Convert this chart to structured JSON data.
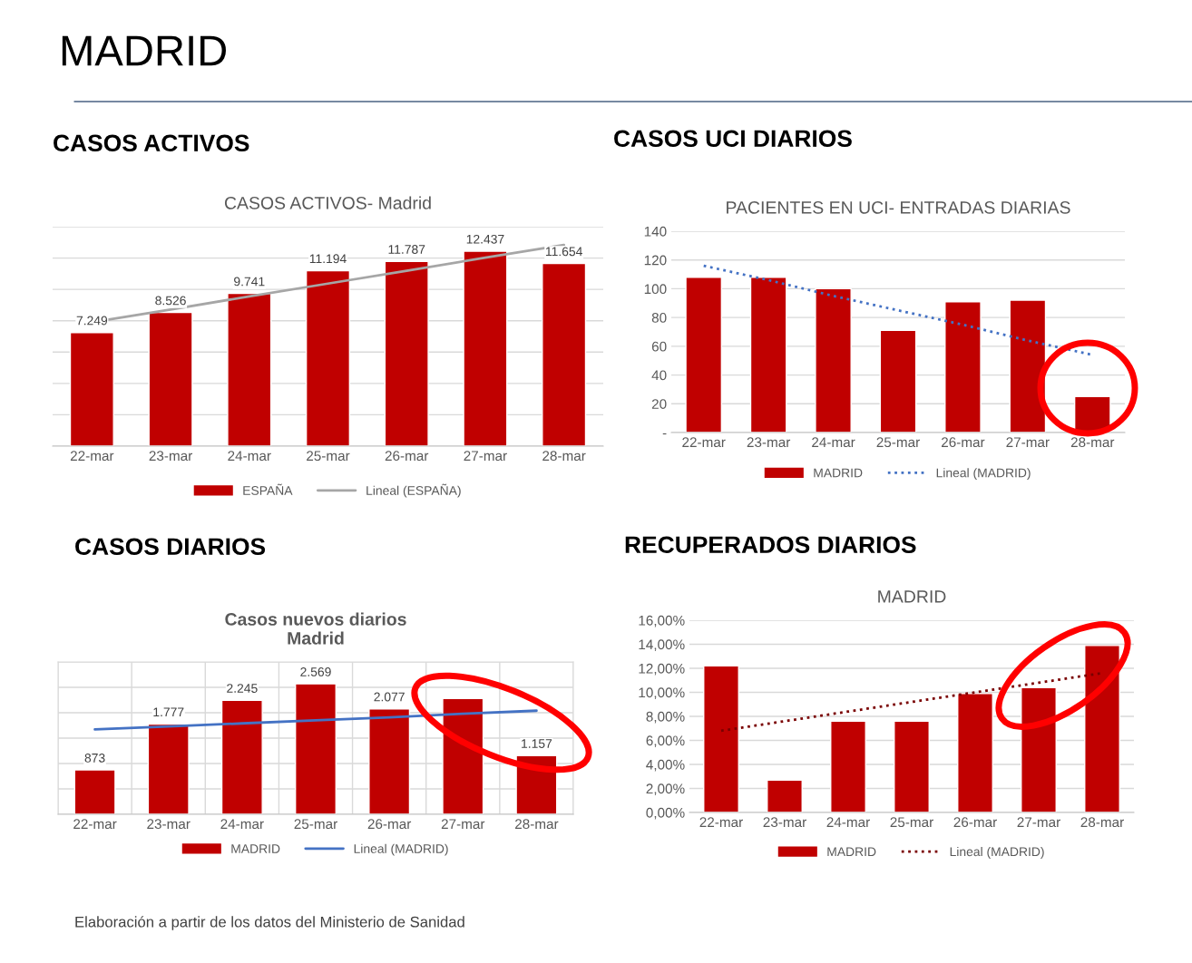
{
  "chart_data": [
    {
      "type": "bar",
      "title": "CASOS ACTIVOS",
      "subtitle": "CASOS ACTIVOS- Madrid",
      "annotations": [
        "MADRID"
      ],
      "categories": [
        "22-mar",
        "23-mar",
        "24-mar",
        "25-mar",
        "26-mar",
        "27-mar",
        "28-mar"
      ],
      "series": [
        {
          "name": "ESPAÑA",
          "color": "#c00000",
          "values": [
            7249,
            8526,
            9741,
            11194,
            11787,
            12437,
            11654
          ],
          "value_labels": [
            "7.249",
            "8.526",
            "9.741",
            "11.194",
            "11.787",
            "12.437",
            "11.654"
          ]
        },
        {
          "type": "line",
          "name": "Lineal (ESPAÑA)",
          "color": "#a6a6a6",
          "line_style": "solid",
          "values": [
            7900,
            8720,
            9550,
            10370,
            11190,
            12020,
            12840
          ]
        }
      ],
      "ylim": [
        0,
        14000
      ],
      "yticks": [
        {
          "value": 0,
          "label": null
        },
        {
          "value": 2000,
          "label": null
        },
        {
          "value": 4000,
          "label": null
        },
        {
          "value": 6000,
          "label": null
        },
        {
          "value": 8000,
          "label": null
        },
        {
          "value": 10000,
          "label": null
        },
        {
          "value": 12000,
          "label": null
        },
        {
          "value": 14000,
          "label": null
        }
      ],
      "tick_labels": "x",
      "grid": "y",
      "legend": "bottom"
    },
    {
      "type": "bar",
      "title": "CASOS UCI DIARIOS",
      "subtitle": "PACIENTES EN UCI- ENTRADAS DIARIAS",
      "categories": [
        "22-mar",
        "23-mar",
        "24-mar",
        "25-mar",
        "26-mar",
        "27-mar",
        "28-mar"
      ],
      "series": [
        {
          "name": "MADRID",
          "color": "#c00000",
          "values": [
            108,
            108,
            100,
            71,
            91,
            92,
            25
          ]
        },
        {
          "type": "line",
          "name": "Lineal (MADRID)",
          "color": "#4472c4",
          "line_style": "dotted",
          "values": [
            116,
            106,
            95,
            85,
            75,
            64,
            54
          ]
        }
      ],
      "ylim": [
        0,
        140
      ],
      "yticks": [
        {
          "value": 0,
          "label": "-"
        },
        20,
        40,
        60,
        80,
        100,
        120,
        140
      ],
      "grid": "y",
      "legend": "bottom"
    },
    {
      "type": "bar",
      "title": "CASOS DIARIOS",
      "subtitle": "Casos nuevos diarios\nMadrid",
      "categories": [
        "22-mar",
        "23-mar",
        "24-mar",
        "25-mar",
        "26-mar",
        "27-mar",
        "28-mar"
      ],
      "series": [
        {
          "name": "MADRID",
          "color": "#c00000",
          "values": [
            873,
            1777,
            2245,
            2569,
            2077,
            2280,
            1157
          ],
          "value_labels": [
            "873",
            "1.777",
            "2.245",
            "2.569",
            "2.077",
            null,
            "1.157"
          ]
        },
        {
          "type": "line",
          "name": "Lineal (MADRID)",
          "color": "#4472c4",
          "line_style": "solid",
          "values": [
            1670,
            1730,
            1790,
            1850,
            1910,
            1980,
            2040
          ]
        }
      ],
      "ylim": [
        0,
        3000
      ],
      "yticks": [
        {
          "value": 0,
          "label": null
        },
        {
          "value": 500,
          "label": null
        },
        {
          "value": 1000,
          "label": null
        },
        {
          "value": 1500,
          "label": null
        },
        {
          "value": 2000,
          "label": null
        },
        {
          "value": 2500,
          "label": null
        },
        {
          "value": 3000,
          "label": null
        }
      ],
      "tick_labels": "x",
      "grid": true,
      "legend": "bottom"
    },
    {
      "type": "bar",
      "title": "RECUPERADOS DIARIOS",
      "subtitle": "MADRID",
      "annotations": [
        "Elaboración a partir de los datos del Ministerio de Sanidad"
      ],
      "categories": [
        "22-mar",
        "23-mar",
        "24-mar",
        "25-mar",
        "26-mar",
        "27-mar",
        "28-mar"
      ],
      "series": [
        {
          "name": "MADRID",
          "color": "#c00000",
          "values": [
            12.2,
            2.7,
            7.6,
            7.6,
            9.9,
            10.4,
            13.9
          ]
        },
        {
          "type": "line",
          "name": "Lineal (MADRID)",
          "color": "#7a0000",
          "line_style": "dotted",
          "values": [
            6.8,
            7.6,
            8.4,
            9.2,
            10.0,
            10.8,
            11.6
          ]
        }
      ],
      "ylim": [
        0,
        16
      ],
      "yticks": [
        {
          "value": 0,
          "label": "0,00%"
        },
        {
          "value": 2,
          "label": "2,00%"
        },
        {
          "value": 4,
          "label": "4,00%"
        },
        {
          "value": 6,
          "label": "6,00%"
        },
        {
          "value": 8,
          "label": "8,00%"
        },
        {
          "value": 10,
          "label": "10,00%"
        },
        {
          "value": 12,
          "label": "12,00%"
        },
        {
          "value": 14,
          "label": "14,00%"
        },
        {
          "value": 16,
          "label": "16,00%"
        }
      ],
      "grid": "y",
      "legend": "bottom"
    }
  ]
}
